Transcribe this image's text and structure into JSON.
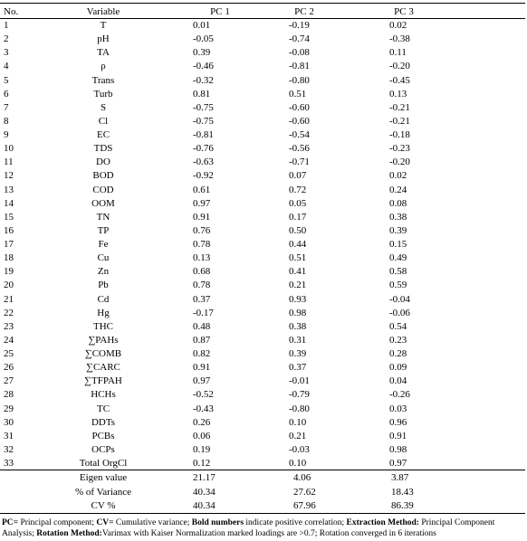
{
  "table": {
    "header": [
      "No.",
      "Variable",
      "PC 1",
      "PC 2",
      "PC 3"
    ],
    "rows": [
      [
        "1",
        "T",
        "0.01",
        "-0.19",
        "0.02"
      ],
      [
        "2",
        "pH",
        "-0.05",
        "-0.74",
        "-0.38"
      ],
      [
        "3",
        "TA",
        "0.39",
        "-0.08",
        "0.11"
      ],
      [
        "4",
        "ρ",
        "-0.46",
        "-0.81",
        "-0.20"
      ],
      [
        "5",
        "Trans",
        "-0.32",
        "-0.80",
        "-0.45"
      ],
      [
        "6",
        "Turb",
        "0.81",
        "0.51",
        "0.13"
      ],
      [
        "7",
        "S",
        "-0.75",
        "-0.60",
        "-0.21"
      ],
      [
        "8",
        "Cl",
        "-0.75",
        "-0.60",
        "-0.21"
      ],
      [
        "9",
        "EC",
        "-0.81",
        "-0.54",
        "-0.18"
      ],
      [
        "10",
        "TDS",
        "-0.76",
        "-0.56",
        "-0.23"
      ],
      [
        "11",
        "DO",
        "-0.63",
        "-0.71",
        "-0.20"
      ],
      [
        "12",
        "BOD",
        "-0.92",
        "0.07",
        "0.02"
      ],
      [
        "13",
        "COD",
        "0.61",
        "0.72",
        "0.24"
      ],
      [
        "14",
        "OOM",
        "0.97",
        "0.05",
        "0.08"
      ],
      [
        "15",
        "TN",
        "0.91",
        "0.17",
        "0.38"
      ],
      [
        "16",
        "TP",
        "0.76",
        "0.50",
        "0.39"
      ],
      [
        "17",
        "Fe",
        "0.78",
        "0.44",
        "0.15"
      ],
      [
        "18",
        "Cu",
        "0.13",
        "0.51",
        "0.49"
      ],
      [
        "19",
        "Zn",
        "0.68",
        "0.41",
        "0.58"
      ],
      [
        "20",
        "Pb",
        "0.78",
        "0.21",
        "0.59"
      ],
      [
        "21",
        "Cd",
        "0.37",
        "0.93",
        "-0.04"
      ],
      [
        "22",
        "Hg",
        "-0.17",
        "0.98",
        "-0.06"
      ],
      [
        "23",
        "THC",
        "0.48",
        "0.38",
        "0.54"
      ],
      [
        "24",
        "∑PAHs",
        "0.87",
        "0.31",
        "0.23"
      ],
      [
        "25",
        "∑COMB",
        "0.82",
        "0.39",
        "0.28"
      ],
      [
        "26",
        "∑CARC",
        "0.91",
        "0.37",
        "0.09"
      ],
      [
        "27",
        "∑TFPAH",
        "0.97",
        "-0.01",
        "0.04"
      ],
      [
        "28",
        "HCHs",
        "-0.52",
        "-0.79",
        "-0.26"
      ],
      [
        "29",
        "TC",
        "-0.43",
        "-0.80",
        "0.03"
      ],
      [
        "30",
        "DDTs",
        "0.26",
        "0.10",
        "0.96"
      ],
      [
        "31",
        "PCBs",
        "0.06",
        "0.21",
        "0.91"
      ],
      [
        "32",
        "OCPs",
        "0.19",
        "-0.03",
        "0.98"
      ],
      [
        "33",
        "Total OrgCl",
        "0.12",
        "0.10",
        "0.97"
      ]
    ],
    "summary": [
      [
        "Eigen value",
        "21.17",
        "4.06",
        "3.87"
      ],
      [
        "% of Variance",
        "40.34",
        "27.62",
        "18.43"
      ],
      [
        "CV %",
        "40.34",
        "67.96",
        "86.39"
      ]
    ],
    "footnote": [
      [
        "PC=",
        " Principal component; "
      ],
      [
        "CV=",
        " Cumulative variance; "
      ],
      [
        "Bold numbers",
        " indicate positive correlation; "
      ],
      [
        "Extraction Method:",
        " Principal Component Analysis; "
      ],
      [
        "Rotation Method:",
        "Varimax with Kaiser Normalization marked loadings are >0.7; Rotation converged in 6 iterations"
      ]
    ]
  }
}
